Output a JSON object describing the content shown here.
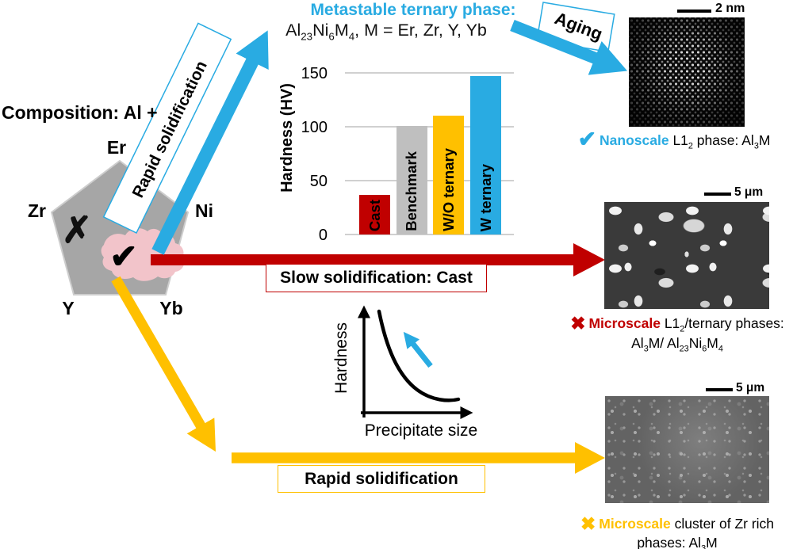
{
  "figure": {
    "type": "graphical-abstract",
    "topic": "Al alloy solidification pathways"
  },
  "colors": {
    "accent_cyan": "#29ABE2",
    "accent_red": "#C00000",
    "accent_yellow": "#FFC000",
    "pentagon_gray": "#A6A6A6",
    "benchmark_gray": "#BFBFBF",
    "blob_pink": "#F2C4CA",
    "gridline": "#D0D0D0"
  },
  "header": {
    "title": "Metastable ternary phase:",
    "formula_rich": [
      {
        "t": "Al"
      },
      {
        "s": "23"
      },
      {
        "t": "Ni"
      },
      {
        "s": "6"
      },
      {
        "t": "M"
      },
      {
        "s": "4"
      },
      {
        "t": ", M = Er, Zr, Y, Yb"
      }
    ]
  },
  "composition": {
    "title": "Composition: Al +",
    "vertex_labels": [
      "Er",
      "Zr",
      "Ni",
      "Y",
      "Yb"
    ],
    "x_mark": "✗",
    "check_mark": "✔"
  },
  "arrows": {
    "rapid_diagonal_label": "Rapid solidification",
    "aging_label": "Aging",
    "slow_label": "Slow solidification: Cast",
    "rapid_bottom_label": "Rapid solidification"
  },
  "chart_data": [
    {
      "type": "bar",
      "title": "",
      "xlabel": "",
      "ylabel": "Hardness (HV)",
      "ylim": [
        0,
        150
      ],
      "yticks": [
        0,
        50,
        100,
        150
      ],
      "grid": true,
      "categories": [
        "Cast",
        "Benchmark",
        "W/O ternary",
        "W ternary"
      ],
      "values": [
        37,
        101,
        110,
        147
      ],
      "bar_colors": [
        "#C00000",
        "#BFBFBF",
        "#FFC000",
        "#29ABE2"
      ],
      "bar_label_position": "inside-vertical"
    },
    {
      "type": "line",
      "title": "",
      "xlabel": "Precipitate size",
      "ylabel": "Hardness",
      "style": "conceptual decreasing convex curve, unlabeled axes with arrowheads",
      "annotation": "cyan arrow pointing up-left: smaller precipitate size gives higher hardness"
    }
  ],
  "micrographs": {
    "stem": {
      "scale_bar": "2 nm",
      "mark": "✔",
      "keyword": "Nanoscale",
      "caption_rich": [
        {
          "t": " L1"
        },
        {
          "s": "2"
        },
        {
          "t": " phase: Al"
        },
        {
          "s": "3"
        },
        {
          "t": "M"
        }
      ]
    },
    "cast_sem": {
      "scale_bar": "5 μm",
      "mark": "✖",
      "keyword": "Microscale",
      "caption_rich": [
        {
          "t": " L1"
        },
        {
          "s": "2"
        },
        {
          "t": "/ternary phases:"
        }
      ],
      "caption_line2_rich": [
        {
          "t": "Al"
        },
        {
          "s": "3"
        },
        {
          "t": "M/ Al"
        },
        {
          "s": "23"
        },
        {
          "t": "Ni"
        },
        {
          "s": "6"
        },
        {
          "t": "M"
        },
        {
          "s": "4"
        }
      ]
    },
    "rs_sem": {
      "scale_bar": "5 μm",
      "mark": "✖",
      "keyword": "Microscale",
      "caption_rest": " cluster of Zr rich",
      "caption_line2_rich": [
        {
          "t": "phases: Al"
        },
        {
          "s": "3"
        },
        {
          "t": "M"
        }
      ]
    }
  }
}
